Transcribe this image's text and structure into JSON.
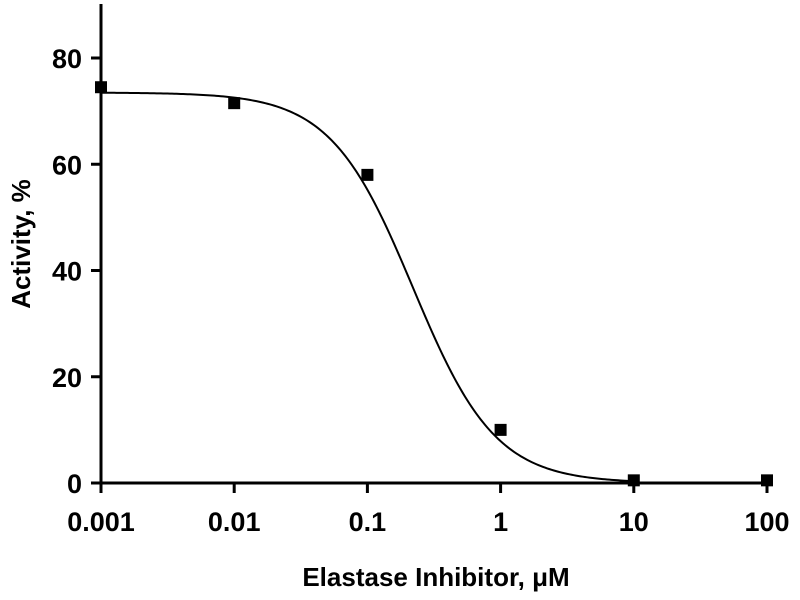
{
  "chart_data": {
    "type": "scatter",
    "title": "",
    "xlabel": "Elastase Inhibitor, μM",
    "ylabel": "Activity, %",
    "x_scale": "log",
    "xlim": [
      0.001,
      100
    ],
    "ylim": [
      0,
      90
    ],
    "x_ticks": [
      0.001,
      0.01,
      0.1,
      1,
      10,
      100
    ],
    "x_tick_labels": [
      "0.001",
      "0.01",
      "0.1",
      "1",
      "10",
      "100"
    ],
    "y_ticks": [
      0,
      20,
      40,
      60,
      80
    ],
    "y_tick_labels": [
      "0",
      "20",
      "40",
      "60",
      "80"
    ],
    "grid": false,
    "series": [
      {
        "x": [
          0.001,
          0.01,
          0.1,
          1,
          10,
          100
        ],
        "y": [
          74.5,
          71.5,
          58,
          10,
          0.5,
          0.5
        ],
        "marker": "square",
        "color": "#000000"
      }
    ],
    "fit_curve": {
      "model": "sigmoidal dose-response",
      "top": 73.5,
      "bottom": 0,
      "ic50": 0.22,
      "hill_slope": 1.4,
      "color": "#000000"
    }
  }
}
